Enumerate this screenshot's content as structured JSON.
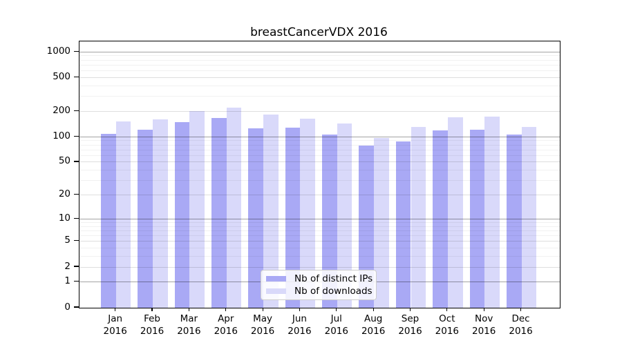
{
  "chart_data": {
    "type": "bar",
    "title": "breastCancerVDX 2016",
    "categories": [
      "Jan",
      "Feb",
      "Mar",
      "Apr",
      "May",
      "Jun",
      "Jul",
      "Aug",
      "Sep",
      "Oct",
      "Nov",
      "Dec"
    ],
    "x_year_label": "2016",
    "series": [
      {
        "name": "Nb of distinct IPs",
        "slug": "distinct-ips",
        "color": "#a9a9f5",
        "values": [
          109,
          121,
          150,
          168,
          127,
          128,
          107,
          79,
          88,
          120,
          121,
          106
        ]
      },
      {
        "name": "Nb of downloads",
        "slug": "downloads",
        "color": "#d9d9fa",
        "values": [
          153,
          161,
          200,
          220,
          184,
          163,
          143,
          96,
          130,
          170,
          173,
          130
        ]
      }
    ],
    "yscale": "log10(value+1)",
    "y_ticks": [
      0,
      1,
      2,
      5,
      10,
      20,
      50,
      100,
      200,
      500,
      1000
    ],
    "ylim": [
      0,
      1326
    ],
    "xlabel": "",
    "ylabel": "",
    "grid": "horizontal, major at powers of 10 (dark) + minor (faint), drawn over bars",
    "legend_position": "bottom-center-inside"
  }
}
